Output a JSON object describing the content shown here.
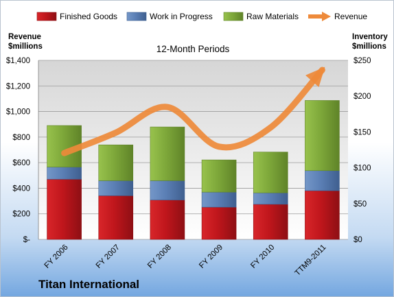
{
  "company": "Titan International",
  "chart_data": {
    "type": "bar",
    "stacked": true,
    "title": "12-Month Periods",
    "categories": [
      "FY 2006",
      "FY 2007",
      "FY 2008",
      "FY 2009",
      "FY 2010",
      "TTM9-2011"
    ],
    "left_axis": {
      "title_line1": "Revenue",
      "title_line2": "$millions",
      "range": [
        0,
        1400
      ],
      "ticks": [
        0,
        200,
        400,
        600,
        800,
        1000,
        1200,
        1400
      ],
      "tick_labels": [
        "$-",
        "$200",
        "$400",
        "$600",
        "$800",
        "$1,000",
        "$1,200",
        "$1,400"
      ]
    },
    "right_axis": {
      "title_line1": "Inventory",
      "title_line2": "$millions",
      "range": [
        0,
        250
      ],
      "ticks": [
        0,
        50,
        100,
        150,
        200,
        250
      ],
      "tick_labels": [
        "$0",
        "$50",
        "$100",
        "$150",
        "$200",
        "$250"
      ]
    },
    "series": [
      {
        "name": "Finished Goods",
        "axis": "right",
        "kind": "bar",
        "color": "#c0161c",
        "values": [
          84,
          61,
          55,
          45,
          49,
          68
        ]
      },
      {
        "name": "Work in Progress",
        "axis": "right",
        "kind": "bar",
        "color": "#5b7fb5",
        "values": [
          17,
          21,
          27,
          21,
          16,
          28
        ]
      },
      {
        "name": "Raw Materials",
        "axis": "right",
        "kind": "bar",
        "color": "#7ea83a",
        "values": [
          58,
          50,
          75,
          45,
          57,
          98
        ]
      },
      {
        "name": "Revenue",
        "axis": "left",
        "kind": "line",
        "color": "#ee8a3a",
        "values": [
          675,
          835,
          1035,
          725,
          875,
          1325
        ]
      }
    ],
    "grid": true,
    "legend_position": "top"
  }
}
